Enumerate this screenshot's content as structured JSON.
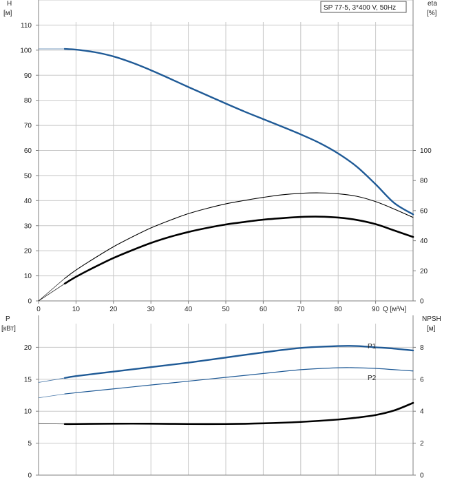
{
  "chart_data": [
    {
      "type": "line",
      "legend_box": "SP 77-5, 3*400 V, 50Hz",
      "ylabel_left": [
        "H",
        "[м]"
      ],
      "ylabel_right": [
        "eta",
        "[%]"
      ],
      "xlabel": "Q [м³/ч]",
      "xlim": [
        0,
        100
      ],
      "ylim_left": [
        0,
        120
      ],
      "ylim_right": [
        0,
        200
      ],
      "x_ticks": [
        "0",
        "10",
        "20",
        "30",
        "40",
        "50",
        "60",
        "70",
        "80",
        "90"
      ],
      "y_ticks_left": [
        "0",
        "10",
        "20",
        "30",
        "40",
        "50",
        "60",
        "70",
        "80",
        "90",
        "100",
        "110"
      ],
      "y_ticks_right": [
        "0",
        "20",
        "40",
        "60",
        "80",
        "100"
      ],
      "grid": true,
      "colors": {
        "head": "#1f5a96",
        "eta": "#000000"
      },
      "series": [
        {
          "key": "head",
          "axis": "left",
          "points": [
            [
              0,
              100.5
            ],
            [
              7,
              100.5
            ],
            [
              10,
              100.2
            ],
            [
              15,
              99.2
            ],
            [
              20,
              97.5
            ],
            [
              25,
              95
            ],
            [
              30,
              92
            ],
            [
              35,
              88.7
            ],
            [
              40,
              85.3
            ],
            [
              45,
              82
            ],
            [
              50,
              78.7
            ],
            [
              55,
              75.5
            ],
            [
              60,
              72.5
            ],
            [
              65,
              69.5
            ],
            [
              70,
              66.4
            ],
            [
              75,
              63
            ],
            [
              80,
              58.8
            ],
            [
              85,
              53.5
            ],
            [
              90,
              46.5
            ],
            [
              95,
              39
            ],
            [
              100,
              34.5
            ]
          ]
        },
        {
          "key": "eta_hydraulic",
          "axis": "right",
          "points": [
            [
              0,
              0
            ],
            [
              7,
              15
            ],
            [
              10,
              20.5
            ],
            [
              15,
              28.5
            ],
            [
              20,
              36
            ],
            [
              25,
              42.5
            ],
            [
              30,
              48.5
            ],
            [
              35,
              53.5
            ],
            [
              40,
              58
            ],
            [
              45,
              61.5
            ],
            [
              50,
              64.5
            ],
            [
              55,
              66.8
            ],
            [
              60,
              68.8
            ],
            [
              65,
              70.5
            ],
            [
              70,
              71.5
            ],
            [
              75,
              71.8
            ],
            [
              80,
              71.2
            ],
            [
              85,
              69.5
            ],
            [
              90,
              66
            ],
            [
              95,
              61
            ],
            [
              100,
              55.5
            ]
          ]
        },
        {
          "key": "eta_total",
          "axis": "right",
          "points": [
            [
              0,
              0
            ],
            [
              7,
              11.5
            ],
            [
              10,
              16
            ],
            [
              15,
              22.5
            ],
            [
              20,
              28.5
            ],
            [
              25,
              33.7
            ],
            [
              30,
              38.5
            ],
            [
              35,
              42.5
            ],
            [
              40,
              45.8
            ],
            [
              45,
              48.5
            ],
            [
              50,
              50.8
            ],
            [
              55,
              52.5
            ],
            [
              60,
              54
            ],
            [
              65,
              55
            ],
            [
              70,
              55.8
            ],
            [
              75,
              56
            ],
            [
              80,
              55.4
            ],
            [
              85,
              53.8
            ],
            [
              90,
              51
            ],
            [
              95,
              46.8
            ],
            [
              100,
              42.5
            ]
          ]
        }
      ]
    },
    {
      "type": "line",
      "ylabel_left": [
        "P",
        "[кВт]"
      ],
      "ylabel_right": [
        "NPSH",
        "[м]"
      ],
      "xlim": [
        0,
        100
      ],
      "ylim_left": [
        0,
        25
      ],
      "ylim_right": [
        0,
        10
      ],
      "y_ticks_left": [
        "0",
        "5",
        "10",
        "15",
        "20"
      ],
      "y_ticks_right": [
        "0",
        "2",
        "4",
        "6",
        "8"
      ],
      "grid": true,
      "colors": {
        "p1": "#1f5a96",
        "p2": "#1f5a96",
        "npsh": "#000000"
      },
      "series": [
        {
          "key": "p1",
          "name": "P1",
          "axis": "left",
          "points": [
            [
              0,
              14.5
            ],
            [
              7,
              15.2
            ],
            [
              10,
              15.5
            ],
            [
              20,
              16.2
            ],
            [
              30,
              16.9
            ],
            [
              40,
              17.6
            ],
            [
              50,
              18.4
            ],
            [
              60,
              19.2
            ],
            [
              70,
              19.9
            ],
            [
              80,
              20.2
            ],
            [
              85,
              20.2
            ],
            [
              90,
              20.0
            ],
            [
              95,
              19.8
            ],
            [
              100,
              19.5
            ]
          ]
        },
        {
          "key": "p2",
          "name": "P2",
          "axis": "left",
          "points": [
            [
              0,
              12.1
            ],
            [
              7,
              12.7
            ],
            [
              10,
              12.9
            ],
            [
              20,
              13.5
            ],
            [
              30,
              14.1
            ],
            [
              40,
              14.7
            ],
            [
              50,
              15.3
            ],
            [
              60,
              15.9
            ],
            [
              70,
              16.5
            ],
            [
              80,
              16.8
            ],
            [
              85,
              16.8
            ],
            [
              90,
              16.7
            ],
            [
              95,
              16.5
            ],
            [
              100,
              16.3
            ]
          ]
        },
        {
          "key": "npsh",
          "axis": "right",
          "points": [
            [
              0,
              3.22
            ],
            [
              7,
              3.2
            ],
            [
              10,
              3.2
            ],
            [
              20,
              3.22
            ],
            [
              30,
              3.22
            ],
            [
              40,
              3.2
            ],
            [
              50,
              3.2
            ],
            [
              60,
              3.24
            ],
            [
              70,
              3.33
            ],
            [
              80,
              3.48
            ],
            [
              85,
              3.6
            ],
            [
              90,
              3.76
            ],
            [
              95,
              4.05
            ],
            [
              100,
              4.52
            ]
          ]
        }
      ]
    }
  ]
}
